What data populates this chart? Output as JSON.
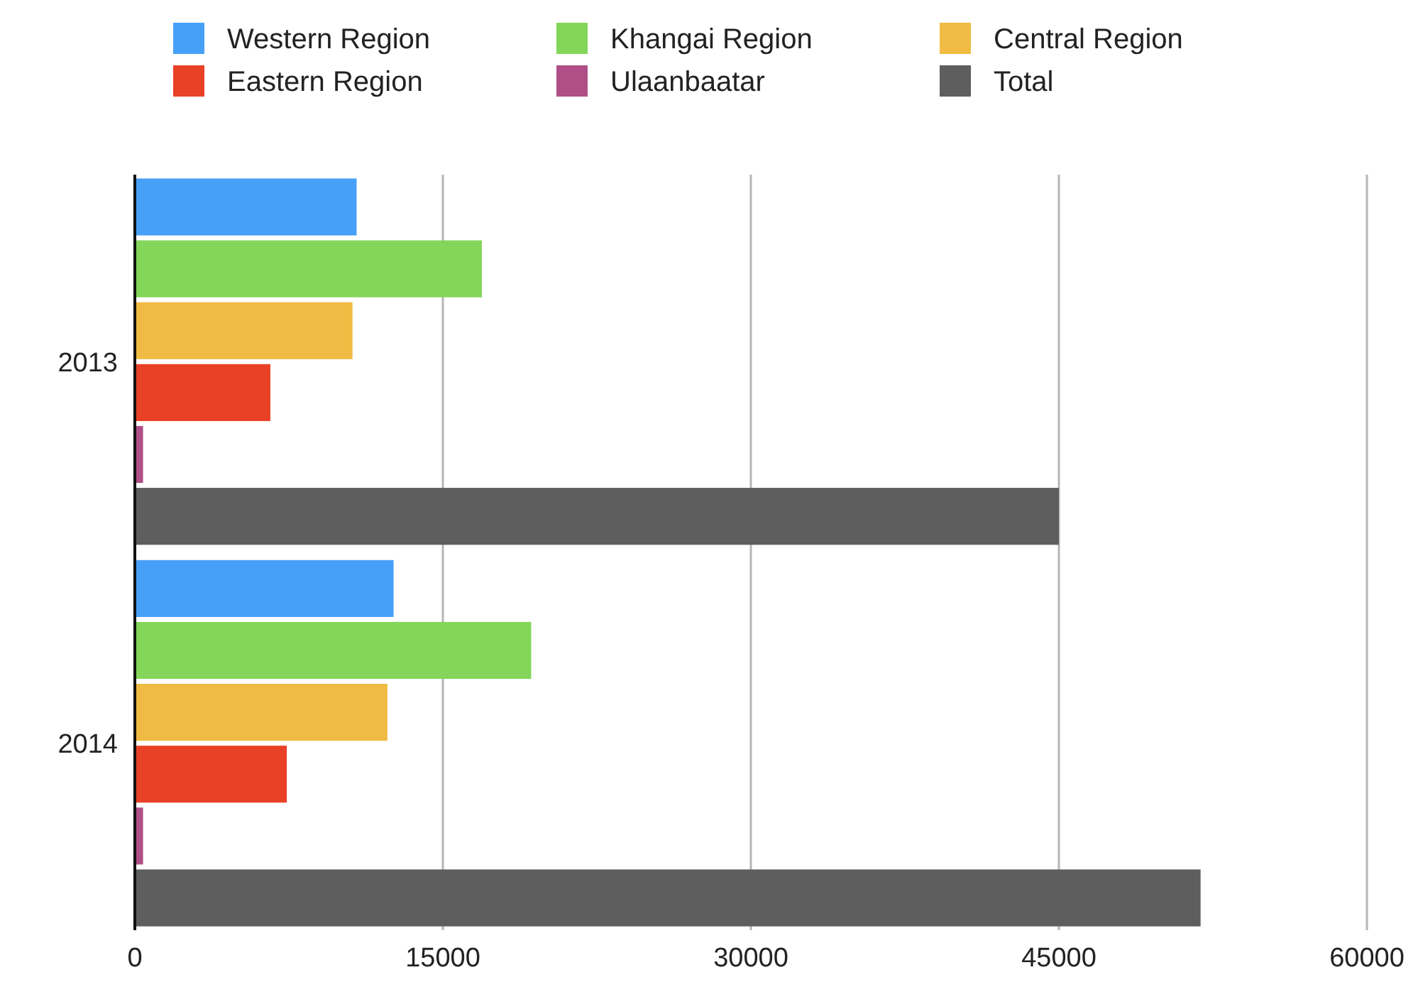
{
  "chart_data": {
    "type": "bar",
    "orientation": "horizontal",
    "categories": [
      "2013",
      "2014"
    ],
    "series": [
      {
        "name": "Western Region",
        "color": "#47a0f8",
        "values": [
          10800,
          12600
        ]
      },
      {
        "name": "Khangai Region",
        "color": "#83d659",
        "values": [
          16900,
          19300
        ]
      },
      {
        "name": "Central Region",
        "color": "#efbb42",
        "values": [
          10600,
          12300
        ]
      },
      {
        "name": "Eastern Region",
        "color": "#e94126",
        "values": [
          6600,
          7400
        ]
      },
      {
        "name": "Ulaanbaatar",
        "color": "#b04f87",
        "values": [
          400,
          400
        ]
      },
      {
        "name": "Total",
        "color": "#5e5e5e",
        "values": [
          45000,
          51900
        ]
      }
    ],
    "xlim": [
      0,
      60000
    ],
    "xticks": [
      0,
      15000,
      30000,
      45000,
      60000
    ],
    "grid": "x",
    "legend": "top"
  }
}
